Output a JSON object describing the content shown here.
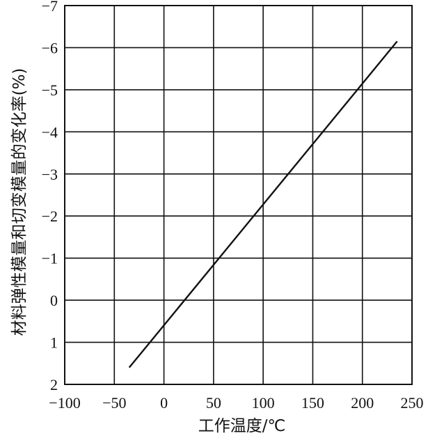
{
  "chart_data": {
    "type": "line",
    "title": "",
    "xlabel": "工作温度/℃",
    "ylabel": "材料弹性模量和切变模量的变化率(%)",
    "x_ticks": [
      "−100",
      "−50",
      "0",
      "50",
      "100",
      "150",
      "200",
      "250"
    ],
    "y_ticks": [
      "−7",
      "−6",
      "−5",
      "−4",
      "−3",
      "−2",
      "−1",
      "0",
      "1",
      "2"
    ],
    "xlim": [
      -100,
      250
    ],
    "ylim": [
      2,
      -7
    ],
    "y_axis_inverted": true,
    "grid": true,
    "legend": "none",
    "series": [
      {
        "x": [
          -35,
          235
        ],
        "y": [
          1.6,
          -6.15
        ]
      }
    ]
  }
}
